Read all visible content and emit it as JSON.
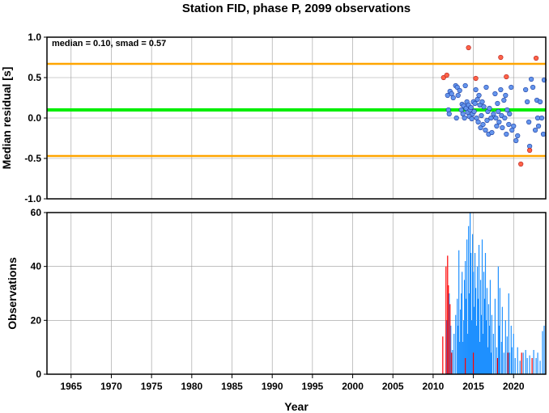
{
  "chart_data": [
    {
      "type": "scatter",
      "title": "Station FID, phase P, 2099 observations",
      "ylabel": "Median residual [s]",
      "xlabel": "",
      "xlim": [
        1962,
        2024
      ],
      "ylim": [
        -1.0,
        1.0
      ],
      "yticks": [
        "-1.0",
        "-0.5",
        "0.0",
        "0.5",
        "1.0"
      ],
      "yticks_values": [
        -1.0,
        -0.5,
        0.0,
        0.5,
        1.0
      ],
      "annotation": "median = 0.10, smad = 0.57",
      "median": 0.1,
      "upper_bound": 0.67,
      "lower_bound": -0.47,
      "colors": {
        "median": "#00ee00",
        "bounds": "#ffa500",
        "inlier": "#6495ed",
        "outlier": "#ff6347",
        "grid": "#9a9a9a"
      },
      "series": [
        {
          "kind": "inlier",
          "points": [
            [
              2011.8,
              0.28
            ],
            [
              2011.9,
              0.1
            ],
            [
              2012.0,
              0.05
            ],
            [
              2012.1,
              0.33
            ],
            [
              2012.3,
              0.3
            ],
            [
              2012.5,
              0.25
            ],
            [
              2012.8,
              0.4
            ],
            [
              2012.9,
              0.0
            ],
            [
              2013.0,
              0.38
            ],
            [
              2013.1,
              0.28
            ],
            [
              2013.3,
              0.34
            ],
            [
              2013.5,
              0.1
            ],
            [
              2013.6,
              0.17
            ],
            [
              2013.7,
              0.05
            ],
            [
              2013.8,
              0.15
            ],
            [
              2013.9,
              0.0
            ],
            [
              2014.0,
              0.4
            ],
            [
              2014.1,
              0.12
            ],
            [
              2014.2,
              0.2
            ],
            [
              2014.3,
              0.07
            ],
            [
              2014.4,
              0.16
            ],
            [
              2014.5,
              0.02
            ],
            [
              2014.6,
              0.1
            ],
            [
              2014.7,
              0.13
            ],
            [
              2014.8,
              -0.01
            ],
            [
              2014.9,
              0.05
            ],
            [
              2015.0,
              0.2
            ],
            [
              2015.1,
              0.08
            ],
            [
              2015.2,
              0.18
            ],
            [
              2015.3,
              0.35
            ],
            [
              2015.4,
              0.0
            ],
            [
              2015.5,
              0.23
            ],
            [
              2015.6,
              -0.05
            ],
            [
              2015.7,
              0.28
            ],
            [
              2015.8,
              0.16
            ],
            [
              2015.9,
              -0.12
            ],
            [
              2016.0,
              0.03
            ],
            [
              2016.1,
              0.2
            ],
            [
              2016.2,
              -0.08
            ],
            [
              2016.3,
              0.14
            ],
            [
              2016.5,
              -0.15
            ],
            [
              2016.6,
              0.38
            ],
            [
              2016.7,
              -0.03
            ],
            [
              2016.8,
              0.08
            ],
            [
              2016.9,
              -0.2
            ],
            [
              2017.0,
              0.12
            ],
            [
              2017.2,
              0.0
            ],
            [
              2017.3,
              -0.18
            ],
            [
              2017.5,
              0.05
            ],
            [
              2017.7,
              0.3
            ],
            [
              2017.8,
              0.0
            ],
            [
              2017.9,
              -0.1
            ],
            [
              2018.0,
              0.18
            ],
            [
              2018.1,
              0.08
            ],
            [
              2018.2,
              -0.05
            ],
            [
              2018.4,
              0.35
            ],
            [
              2018.5,
              0.03
            ],
            [
              2018.6,
              -0.12
            ],
            [
              2018.8,
              0.22
            ],
            [
              2018.9,
              0.0
            ],
            [
              2019.0,
              0.28
            ],
            [
              2019.1,
              -0.2
            ],
            [
              2019.2,
              0.1
            ],
            [
              2019.4,
              -0.08
            ],
            [
              2019.5,
              0.05
            ],
            [
              2019.7,
              0.38
            ],
            [
              2019.8,
              -0.15
            ],
            [
              2020.0,
              -0.1
            ],
            [
              2020.3,
              -0.28
            ],
            [
              2020.5,
              -0.22
            ],
            [
              2021.5,
              0.35
            ],
            [
              2021.7,
              0.2
            ],
            [
              2021.9,
              -0.05
            ],
            [
              2022.0,
              -0.35
            ],
            [
              2022.2,
              0.48
            ],
            [
              2022.4,
              0.38
            ],
            [
              2022.7,
              -0.15
            ],
            [
              2022.9,
              0.22
            ],
            [
              2023.0,
              0.0
            ],
            [
              2023.1,
              -0.1
            ],
            [
              2023.3,
              0.2
            ],
            [
              2023.5,
              0.0
            ],
            [
              2023.7,
              -0.2
            ],
            [
              2023.8,
              0.47
            ]
          ]
        },
        {
          "kind": "outlier",
          "points": [
            [
              2011.3,
              0.5
            ],
            [
              2011.7,
              0.53
            ],
            [
              2014.4,
              0.87
            ],
            [
              2015.3,
              0.49
            ],
            [
              2018.4,
              0.75
            ],
            [
              2019.1,
              0.51
            ],
            [
              2020.9,
              -0.57
            ],
            [
              2022.0,
              -0.4
            ],
            [
              2022.8,
              0.74
            ]
          ]
        }
      ]
    },
    {
      "type": "bar",
      "xlabel": "Year",
      "ylabel": "Observations",
      "xlim": [
        1962,
        2024
      ],
      "ylim": [
        0,
        60
      ],
      "xticks": [
        "1965",
        "1970",
        "1975",
        "1980",
        "1985",
        "1990",
        "1995",
        "2000",
        "2005",
        "2010",
        "2015",
        "2020"
      ],
      "xticks_values": [
        1965,
        1970,
        1975,
        1980,
        1985,
        1990,
        1995,
        2000,
        2005,
        2010,
        2015,
        2020
      ],
      "yticks": [
        "0",
        "20",
        "40",
        "60"
      ],
      "yticks_values": [
        0,
        20,
        40,
        60
      ],
      "colors": {
        "blue": "#1e90ff",
        "red": "#ff0000"
      },
      "red_bars": [
        [
          2011.2,
          14
        ],
        [
          2011.6,
          40
        ],
        [
          2011.8,
          44
        ],
        [
          2011.9,
          33
        ],
        [
          2012.1,
          26
        ],
        [
          2012.3,
          8
        ],
        [
          2014.0,
          6
        ],
        [
          2015.0,
          8
        ],
        [
          2018.0,
          6
        ],
        [
          2019.3,
          8
        ],
        [
          2021.0,
          8
        ],
        [
          2022.3,
          6
        ]
      ],
      "blue_bars": [
        [
          2011.7,
          20
        ],
        [
          2012.0,
          30
        ],
        [
          2012.2,
          18
        ],
        [
          2012.4,
          9
        ],
        [
          2012.6,
          15
        ],
        [
          2012.8,
          22
        ],
        [
          2013.0,
          28
        ],
        [
          2013.1,
          18
        ],
        [
          2013.2,
          46
        ],
        [
          2013.3,
          12
        ],
        [
          2013.4,
          24
        ],
        [
          2013.5,
          30
        ],
        [
          2013.6,
          38
        ],
        [
          2013.7,
          12
        ],
        [
          2013.8,
          20
        ],
        [
          2013.9,
          35
        ],
        [
          2014.0,
          42
        ],
        [
          2014.1,
          28
        ],
        [
          2014.2,
          50
        ],
        [
          2014.3,
          15
        ],
        [
          2014.4,
          55
        ],
        [
          2014.5,
          30
        ],
        [
          2014.6,
          60
        ],
        [
          2014.7,
          45
        ],
        [
          2014.8,
          20
        ],
        [
          2014.9,
          52
        ],
        [
          2015.0,
          38
        ],
        [
          2015.1,
          25
        ],
        [
          2015.2,
          45
        ],
        [
          2015.3,
          32
        ],
        [
          2015.4,
          18
        ],
        [
          2015.5,
          40
        ],
        [
          2015.6,
          28
        ],
        [
          2015.7,
          48
        ],
        [
          2015.8,
          12
        ],
        [
          2015.9,
          35
        ],
        [
          2016.0,
          22
        ],
        [
          2016.1,
          50
        ],
        [
          2016.2,
          15
        ],
        [
          2016.3,
          38
        ],
        [
          2016.4,
          28
        ],
        [
          2016.5,
          45
        ],
        [
          2016.6,
          20
        ],
        [
          2016.7,
          32
        ],
        [
          2016.8,
          10
        ],
        [
          2016.9,
          26
        ],
        [
          2017.0,
          18
        ],
        [
          2017.1,
          35
        ],
        [
          2017.2,
          8
        ],
        [
          2017.3,
          22
        ],
        [
          2017.5,
          15
        ],
        [
          2017.7,
          28
        ],
        [
          2017.9,
          10
        ],
        [
          2018.1,
          40
        ],
        [
          2018.2,
          18
        ],
        [
          2018.3,
          32
        ],
        [
          2018.5,
          12
        ],
        [
          2018.6,
          25
        ],
        [
          2018.8,
          8
        ],
        [
          2019.0,
          20
        ],
        [
          2019.2,
          14
        ],
        [
          2019.4,
          30
        ],
        [
          2019.5,
          8
        ],
        [
          2019.7,
          18
        ],
        [
          2019.8,
          10
        ],
        [
          2020.0,
          15
        ],
        [
          2020.2,
          6
        ],
        [
          2020.5,
          10
        ],
        [
          2020.8,
          5
        ],
        [
          2021.2,
          8
        ],
        [
          2021.5,
          9
        ],
        [
          2021.7,
          6
        ],
        [
          2022.0,
          7
        ],
        [
          2022.5,
          9
        ],
        [
          2022.8,
          6
        ],
        [
          2023.0,
          8
        ],
        [
          2023.3,
          5
        ],
        [
          2023.6,
          16
        ],
        [
          2023.8,
          18
        ]
      ]
    }
  ]
}
